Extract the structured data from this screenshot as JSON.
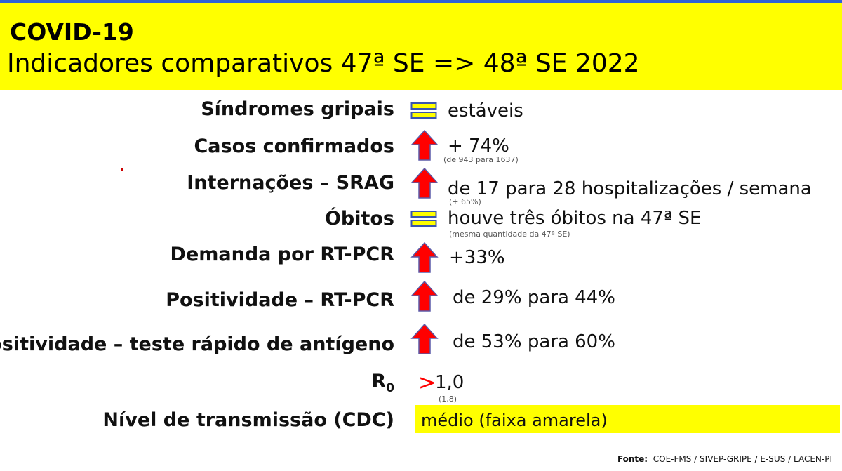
{
  "header": {
    "title": "COVID-19",
    "subtitle": "Indicadores comparativos 47ª SE => 48ª  SE  2022"
  },
  "indicators": [
    {
      "label": "Síndromes gripais",
      "icon": "equals-icon",
      "value": "estáveis",
      "note": ""
    },
    {
      "label": "Casos confirmados",
      "icon": "arrow-up-icon",
      "value": "+ 74%",
      "note": "(de 943 para 1637)"
    },
    {
      "label": "Internações – SRAG",
      "icon": "arrow-up-icon",
      "value": "de 17 para 28 hospitalizações / semana",
      "note": "(+ 65%)"
    },
    {
      "label": "Óbitos",
      "icon": "equals-icon",
      "value": "houve três óbitos na 47ª SE",
      "note": "(mesma quantidade da 47ª SE)"
    },
    {
      "label": "Demanda por RT-PCR",
      "icon": "arrow-up-icon",
      "value": "+33%",
      "note": ""
    },
    {
      "label": "Positividade – RT-PCR",
      "icon": "arrow-up-icon",
      "value": "de 29% para 44%",
      "note": ""
    },
    {
      "label": "Positividade – teste rápido de antígeno",
      "icon": "arrow-up-icon",
      "value": "de 53% para 60%",
      "note": ""
    }
  ],
  "r0": {
    "label_main": "R",
    "label_sub": "0",
    "symbol": ">",
    "value": "1,0",
    "note": "(1,8)"
  },
  "transmission": {
    "label": "Nível de transmissão (CDC)",
    "value": "médio (faixa amarela)"
  },
  "footer": {
    "prefix": "Fonte:",
    "text": "COE-FMS / SIVEP-GRIPE / E-SUS / LACEN-PI"
  },
  "colors": {
    "header_bg": "#ffff00",
    "arrow": "#ff0000",
    "arrow_outline": "#5a5aa8",
    "equals_fill": "#ffff00",
    "equals_outline": "#3a56b0"
  }
}
